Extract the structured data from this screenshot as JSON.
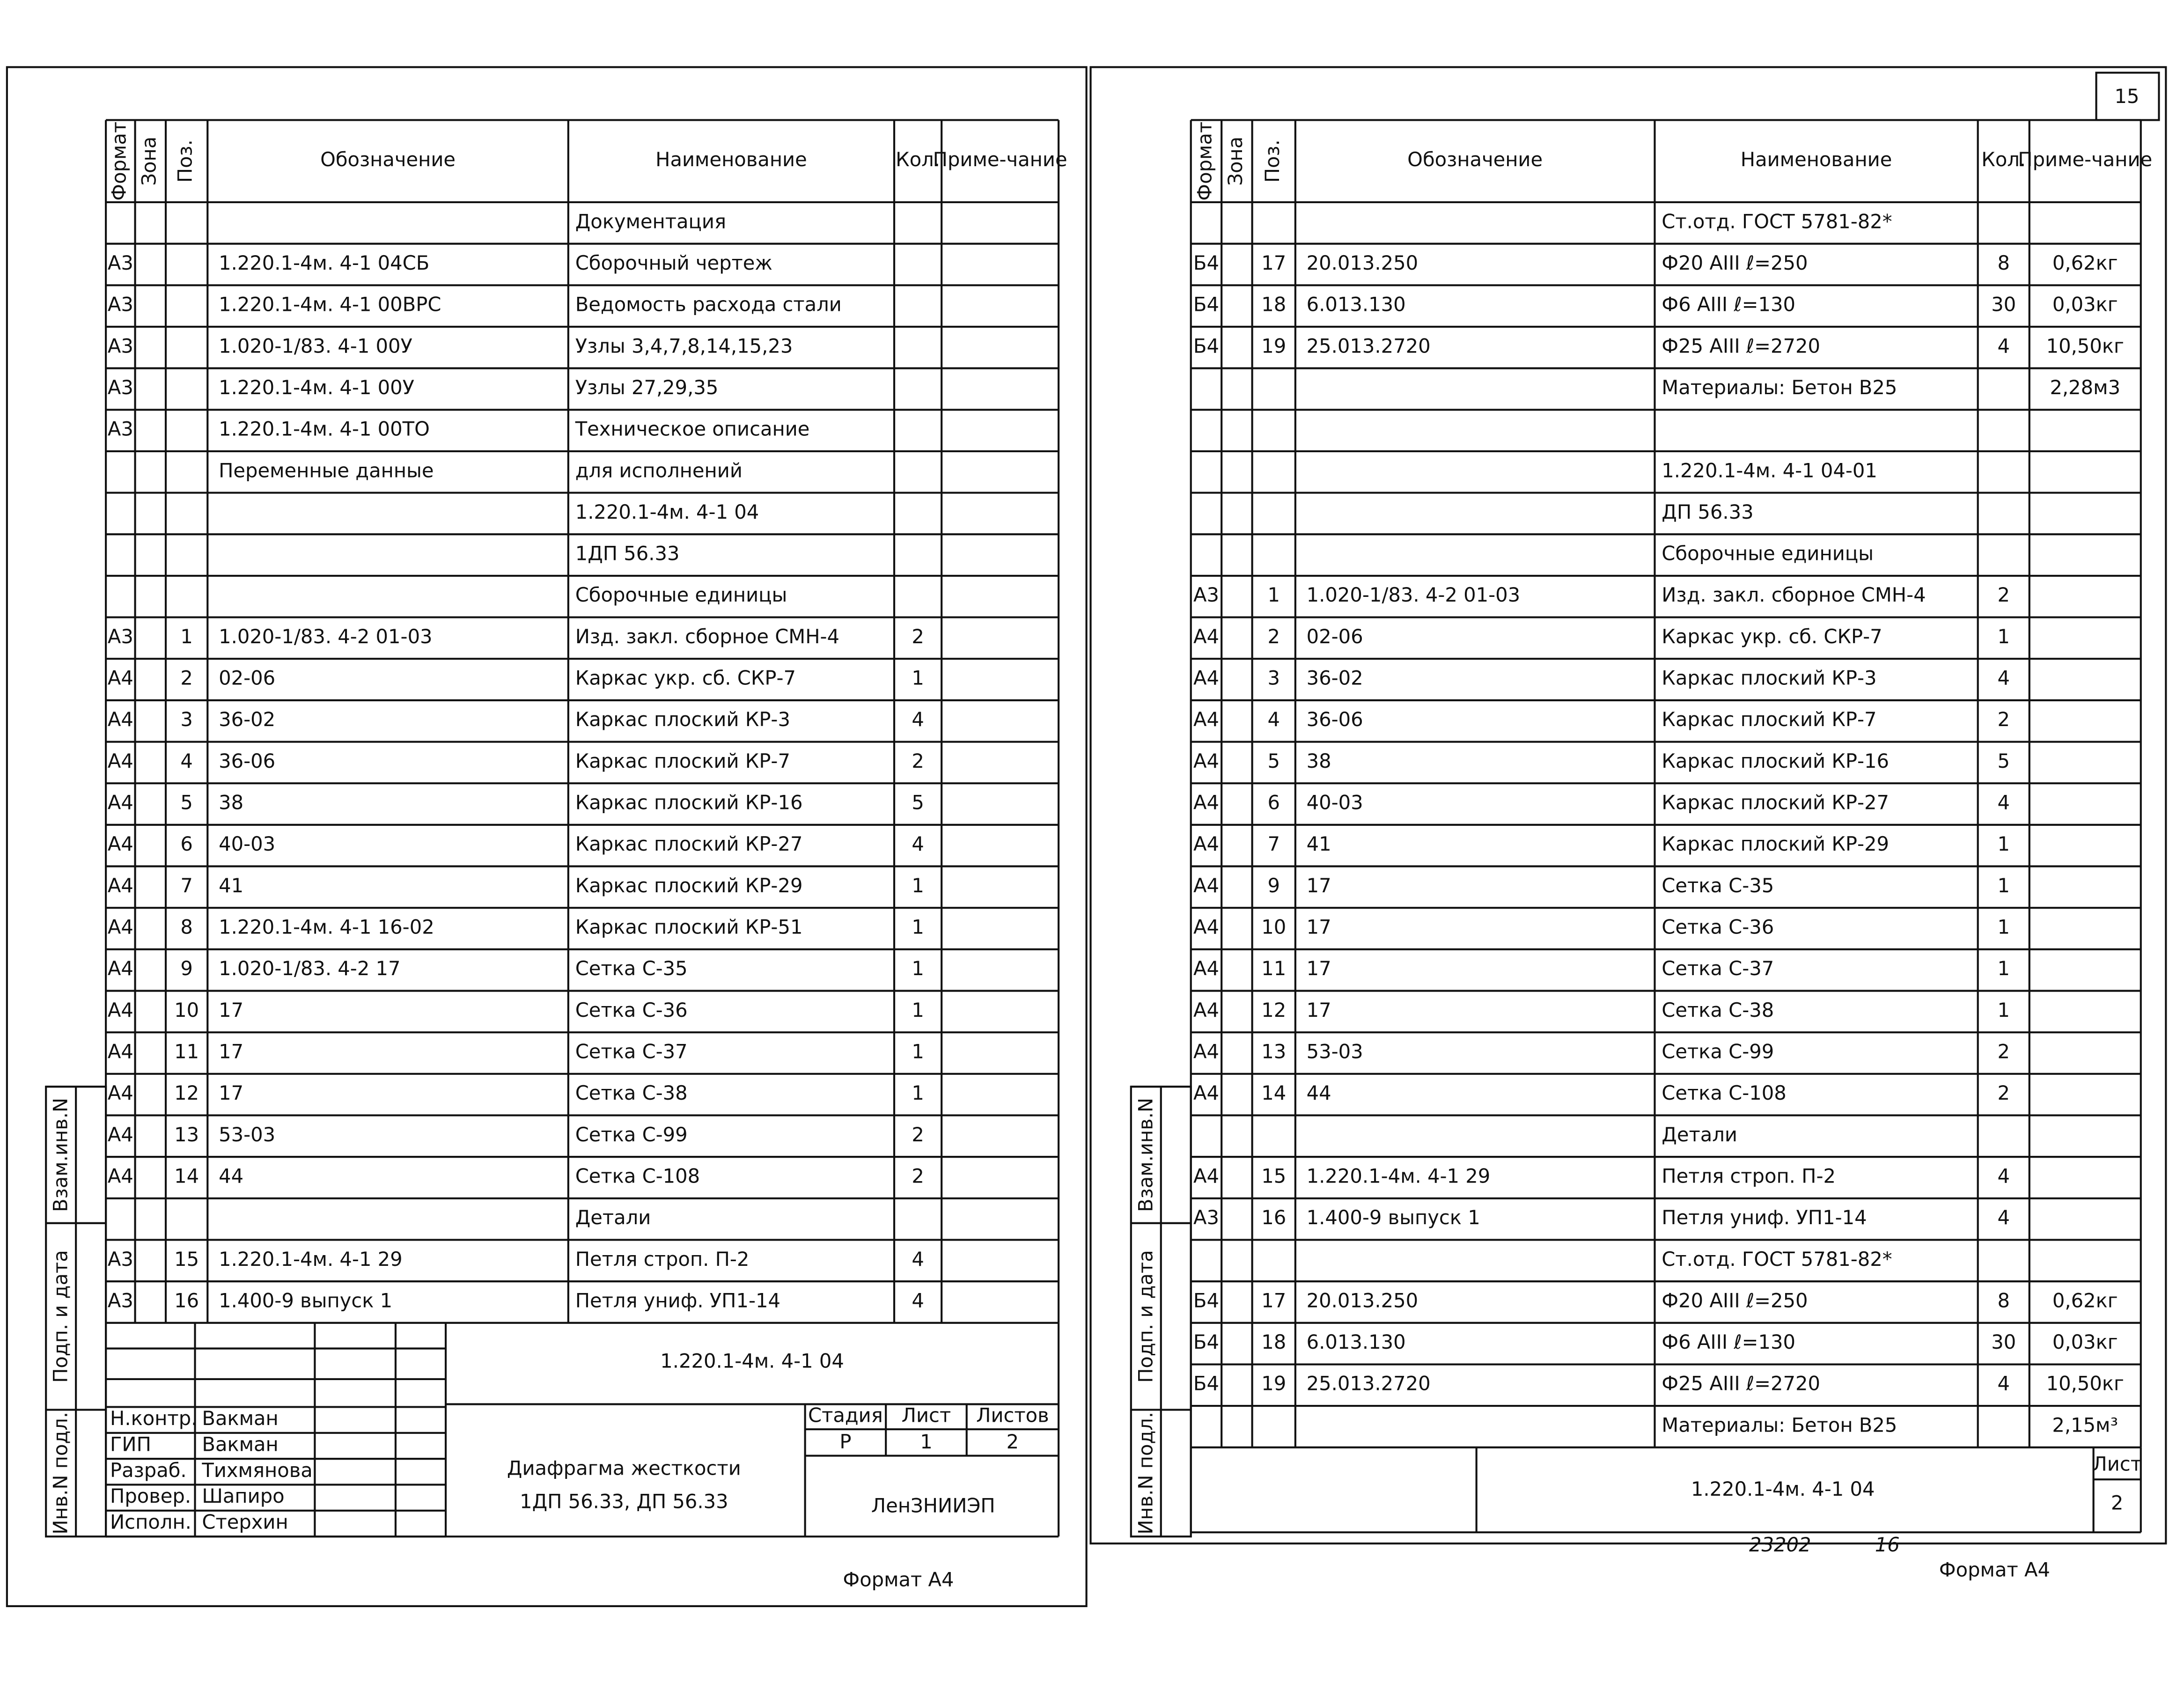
{
  "left": {
    "columns": [
      "Формат",
      "Зона",
      "Поз.",
      "Обозначение",
      "Наименование",
      "Кол.",
      "Приме-чание"
    ],
    "rows": [
      [
        null,
        null,
        null,
        null,
        "Документация",
        null,
        null
      ],
      [
        "А3",
        null,
        null,
        "1.220.1-4м. 4-1   04СБ",
        "Сборочный чертеж",
        null,
        null
      ],
      [
        "А3",
        null,
        null,
        "1.220.1-4м. 4-1   00ВРС",
        "Ведомость расхода стали",
        null,
        null
      ],
      [
        "А3",
        null,
        null,
        "1.020-1/83. 4-1   00У",
        "Узлы 3,4,7,8,14,15,23",
        null,
        null
      ],
      [
        "А3",
        null,
        null,
        "1.220.1-4м. 4-1   00У",
        "Узлы 27,29,35",
        null,
        null
      ],
      [
        "А3",
        null,
        null,
        "1.220.1-4м. 4-1   00ТО",
        "Техническое описание",
        null,
        null
      ],
      [
        null,
        null,
        null,
        "Переменные данные",
        "для исполнений",
        null,
        null
      ],
      [
        null,
        null,
        null,
        null,
        "1.220.1-4м. 4-1 04",
        null,
        null
      ],
      [
        null,
        null,
        null,
        null,
        "1ДП 56.33",
        null,
        null
      ],
      [
        null,
        null,
        null,
        null,
        "Сборочные единицы",
        null,
        null
      ],
      [
        "А3",
        null,
        "1",
        "1.020-1/83. 4-2   01-03",
        "Изд. закл. сборное СМН-4",
        "2",
        null
      ],
      [
        "А4",
        null,
        "2",
        "02-06",
        "Каркас укр. сб. СКР-7",
        "1",
        null
      ],
      [
        "А4",
        null,
        "3",
        "36-02",
        "Каркас плоский КР-3",
        "4",
        null
      ],
      [
        "А4",
        null,
        "4",
        "36-06",
        "Каркас плоский КР-7",
        "2",
        null
      ],
      [
        "А4",
        null,
        "5",
        "38",
        "Каркас плоский КР-16",
        "5",
        null
      ],
      [
        "А4",
        null,
        "6",
        "40-03",
        "Каркас плоский КР-27",
        "4",
        null
      ],
      [
        "А4",
        null,
        "7",
        "41",
        "Каркас плоский КР-29",
        "1",
        null
      ],
      [
        "А4",
        null,
        "8",
        "1.220.1-4м. 4-1   16-02",
        "Каркас плоский КР-51",
        "1",
        null
      ],
      [
        "А4",
        null,
        "9",
        "1.020-1/83. 4-2   17",
        "Сетка С-35",
        "1",
        null
      ],
      [
        "А4",
        null,
        "10",
        "17",
        "Сетка С-36",
        "1",
        null
      ],
      [
        "А4",
        null,
        "11",
        "17",
        "Сетка С-37",
        "1",
        null
      ],
      [
        "А4",
        null,
        "12",
        "17",
        "Сетка С-38",
        "1",
        null
      ],
      [
        "А4",
        null,
        "13",
        "53-03",
        "Сетка С-99",
        "2",
        null
      ],
      [
        "А4",
        null,
        "14",
        "44",
        "Сетка С-108",
        "2",
        null
      ],
      [
        null,
        null,
        null,
        null,
        "Детали",
        null,
        null
      ],
      [
        "А3",
        null,
        "15",
        "1.220.1-4м. 4-1   29",
        "Петля строп. П-2",
        "4",
        null
      ],
      [
        "А3",
        null,
        "16",
        "1.400-9 выпуск 1",
        "Петля униф. УП1-14",
        "4",
        null
      ]
    ],
    "title_block": {
      "designation": "1.220.1-4м. 4-1    04",
      "roles": [
        "Н.контр.",
        "ГИП",
        "Разраб.",
        "Провер.",
        "Исполн."
      ],
      "names": [
        "Вакман",
        "Вакман",
        "Тихмянова",
        "Шапиро",
        "Стерхин"
      ],
      "stage_header": "Стадия",
      "sheet_header": "Лист",
      "sheets_header": "Листов",
      "stage": "Р",
      "sheet": 1,
      "sheets": 2,
      "title_lines": [
        "Диафрагма жесткости",
        "1ДП 56.33, ДП 56.33"
      ],
      "organization": "ЛенЗНИИЭП"
    },
    "side_stamp": [
      "Взам.инв.N",
      "Подп. и дата",
      "Инв.N подл."
    ],
    "format": "Формат А4"
  },
  "right": {
    "page_number": 15,
    "columns": [
      "Формат",
      "Зона",
      "Поз.",
      "Обозначение",
      "Наименование",
      "Кол.",
      "Приме-чание"
    ],
    "rows": [
      [
        null,
        null,
        null,
        null,
        "Ст.отд. ГОСТ 5781-82*",
        null,
        null
      ],
      [
        "Б4",
        null,
        "17",
        "20.013.250",
        "Ф20 АIII  ℓ=250",
        "8",
        "0,62кг"
      ],
      [
        "Б4",
        null,
        "18",
        "6.013.130",
        "Ф6 АIII  ℓ=130",
        "30",
        "0,03кг"
      ],
      [
        "Б4",
        null,
        "19",
        "25.013.2720",
        "Ф25 АIII  ℓ=2720",
        "4",
        "10,50кг"
      ],
      [
        null,
        null,
        null,
        null,
        "Материалы: Бетон В25",
        null,
        "2,28м3"
      ],
      [
        null,
        null,
        null,
        null,
        null,
        null,
        null
      ],
      [
        null,
        null,
        null,
        null,
        "1.220.1-4м. 4-1 04-01",
        null,
        null
      ],
      [
        null,
        null,
        null,
        null,
        "ДП 56.33",
        null,
        null
      ],
      [
        null,
        null,
        null,
        null,
        "Сборочные единицы",
        null,
        null
      ],
      [
        "А3",
        null,
        "1",
        "1.020-1/83. 4-2   01-03",
        "Изд. закл. сборное СМН-4",
        "2",
        null
      ],
      [
        "А4",
        null,
        "2",
        "02-06",
        "Каркас укр. сб. СКР-7",
        "1",
        null
      ],
      [
        "А4",
        null,
        "3",
        "36-02",
        "Каркас плоский КР-3",
        "4",
        null
      ],
      [
        "А4",
        null,
        "4",
        "36-06",
        "Каркас плоский КР-7",
        "2",
        null
      ],
      [
        "А4",
        null,
        "5",
        "38",
        "Каркас плоский КР-16",
        "5",
        null
      ],
      [
        "А4",
        null,
        "6",
        "40-03",
        "Каркас плоский КР-27",
        "4",
        null
      ],
      [
        "А4",
        null,
        "7",
        "41",
        "Каркас плоский КР-29",
        "1",
        null
      ],
      [
        "А4",
        null,
        "9",
        "17",
        "Сетка С-35",
        "1",
        null
      ],
      [
        "А4",
        null,
        "10",
        "17",
        "Сетка С-36",
        "1",
        null
      ],
      [
        "А4",
        null,
        "11",
        "17",
        "Сетка С-37",
        "1",
        null
      ],
      [
        "А4",
        null,
        "12",
        "17",
        "Сетка С-38",
        "1",
        null
      ],
      [
        "А4",
        null,
        "13",
        "53-03",
        "Сетка С-99",
        "2",
        null
      ],
      [
        "А4",
        null,
        "14",
        "44",
        "Сетка С-108",
        "2",
        null
      ],
      [
        null,
        null,
        null,
        null,
        "Детали",
        null,
        null
      ],
      [
        "А4",
        null,
        "15",
        "1.220.1-4м. 4-1   29",
        "Петля строп. П-2",
        "4",
        null
      ],
      [
        "А3",
        null,
        "16",
        "1.400-9 выпуск 1",
        "Петля униф. УП1-14",
        "4",
        null
      ],
      [
        null,
        null,
        null,
        null,
        "Ст.отд. ГОСТ 5781-82*",
        null,
        null
      ],
      [
        "Б4",
        null,
        "17",
        "20.013.250",
        "Ф20 АIII  ℓ=250",
        "8",
        "0,62кг"
      ],
      [
        "Б4",
        null,
        "18",
        "6.013.130",
        "Ф6 АIII  ℓ=130",
        "30",
        "0,03кг"
      ],
      [
        "Б4",
        null,
        "19",
        "25.013.2720",
        "Ф25 АIII  ℓ=2720",
        "4",
        "10,50кг"
      ],
      [
        null,
        null,
        null,
        null,
        "Материалы: Бетон В25",
        null,
        "2,15м³"
      ]
    ],
    "title_block": {
      "designation": "1.220.1-4м. 4-1  04",
      "sheet_header": "Лист",
      "sheet": 2
    },
    "side_stamp": [
      "Взам.инв.N",
      "Подп. и дата",
      "Инв.N подл."
    ],
    "archive_number": "23202",
    "archive_sheet": 16,
    "format": "Формат А4"
  }
}
